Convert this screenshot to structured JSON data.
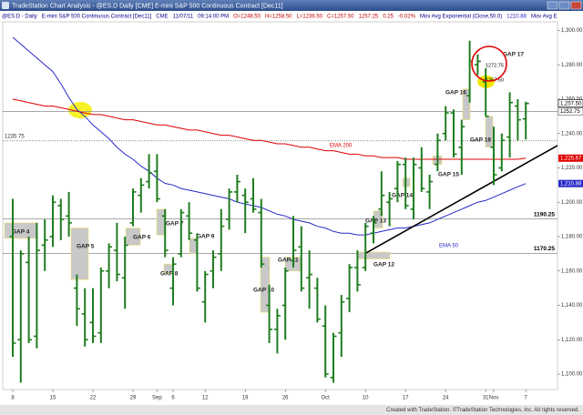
{
  "chart_data": {
    "type": "ohlc",
    "window_title": "TradeStation Chart Analysis - @ES.D Daily [CME] E-mini S&P 500 Continuous Contract [Dec11]",
    "info_bar": [
      "@ES.D - Daily",
      "E-mini S&P 500 Continuous Contract [Dec11]",
      "CME",
      "11/07/11",
      "09:14:00 PM",
      "O=1248.50",
      "H=1258.50",
      "L=1236.50",
      "C=1257.50",
      "1257.25",
      "0.25",
      "-0.02%",
      "Mov Avg Exponential (Close,50.0)",
      "1210.88",
      "Mov Avg E"
    ],
    "footer": "Created with TradeStation. ©TradeStation Technologies, Inc. All rights reserved.",
    "categories": [
      "8",
      null,
      null,
      null,
      null,
      "15",
      null,
      null,
      null,
      null,
      "22",
      null,
      null,
      null,
      null,
      "29",
      null,
      null,
      "Sep",
      null,
      "6",
      null,
      null,
      null,
      "12",
      null,
      null,
      null,
      null,
      "19",
      null,
      null,
      null,
      null,
      "26",
      null,
      null,
      null,
      null,
      "Oct",
      null,
      null,
      null,
      null,
      "10",
      null,
      null,
      null,
      null,
      "17",
      null,
      null,
      null,
      null,
      "24",
      null,
      null,
      null,
      null,
      "31",
      "Nov",
      null,
      null,
      null,
      "7"
    ],
    "open": [
      1180,
      1120,
      1165,
      1122,
      1175,
      1180,
      1198,
      1192,
      1150,
      1135,
      1130,
      1124,
      1160,
      1172,
      1156,
      1188,
      1204,
      1212,
      1218,
      1192,
      1150,
      1170,
      1192,
      1178,
      1142,
      1160,
      1170,
      1190,
      1206,
      1204,
      1202,
      1194,
      1140,
      1126,
      1140,
      1166,
      1174,
      1156,
      1150,
      1128,
      1098,
      1124,
      1144,
      1162,
      1162,
      1182,
      1196,
      1200,
      1208,
      1222,
      1196,
      1220,
      1206,
      1222,
      1240,
      1252,
      1232,
      1262,
      1280,
      1270,
      1232,
      1220,
      1238,
      1256,
      1248.5
    ],
    "high": [
      1202,
      1172,
      1180,
      1188,
      1190,
      1204,
      1202,
      1206,
      1158,
      1150,
      1150,
      1162,
      1176,
      1188,
      1180,
      1208,
      1214,
      1228,
      1228,
      1196,
      1168,
      1196,
      1200,
      1182,
      1160,
      1172,
      1196,
      1208,
      1216,
      1208,
      1214,
      1202,
      1152,
      1138,
      1162,
      1192,
      1186,
      1172,
      1156,
      1140,
      1124,
      1146,
      1164,
      1172,
      1188,
      1192,
      1218,
      1206,
      1224,
      1226,
      1226,
      1232,
      1216,
      1240,
      1256,
      1254,
      1248,
      1294,
      1286,
      1278,
      1244,
      1240,
      1264,
      1260,
      1258.5
    ],
    "low": [
      1110,
      1095,
      1118,
      1115,
      1160,
      1174,
      1178,
      1180,
      1128,
      1116,
      1118,
      1118,
      1150,
      1154,
      1138,
      1186,
      1194,
      1208,
      1200,
      1168,
      1140,
      1168,
      1178,
      1148,
      1130,
      1150,
      1160,
      1184,
      1200,
      1182,
      1194,
      1162,
      1118,
      1112,
      1120,
      1162,
      1148,
      1138,
      1130,
      1098,
      1095,
      1110,
      1136,
      1148,
      1160,
      1176,
      1192,
      1186,
      1200,
      1196,
      1190,
      1206,
      1196,
      1218,
      1236,
      1226,
      1216,
      1258,
      1274,
      1250,
      1210,
      1218,
      1226,
      1236,
      1236.5
    ],
    "close": [
      1118,
      1170,
      1120,
      1172,
      1178,
      1200,
      1190,
      1188,
      1138,
      1120,
      1122,
      1160,
      1174,
      1158,
      1175,
      1206,
      1210,
      1217,
      1202,
      1172,
      1164,
      1194,
      1182,
      1150,
      1158,
      1168,
      1186,
      1206,
      1212,
      1200,
      1196,
      1164,
      1126,
      1134,
      1160,
      1172,
      1150,
      1158,
      1132,
      1100,
      1122,
      1142,
      1162,
      1152,
      1186,
      1188,
      1204,
      1202,
      1222,
      1198,
      1222,
      1208,
      1212,
      1236,
      1252,
      1228,
      1244,
      1282,
      1282,
      1250,
      1216,
      1236,
      1258,
      1248,
      1257.5
    ],
    "bar_color": "#1e7d1e",
    "indicators": [
      {
        "name": "EMA 200",
        "color": "#e00000",
        "last_label": {
          "value": 1225.67,
          "label": "1,225.67"
        },
        "values": [
          1260,
          1259,
          1258,
          1257,
          1256,
          1256,
          1255,
          1254,
          1253,
          1252,
          1251,
          1251,
          1250,
          1249,
          1248,
          1248,
          1247,
          1246,
          1245,
          1245,
          1244,
          1243,
          1242,
          1242,
          1241,
          1240,
          1239,
          1239,
          1238,
          1237,
          1236,
          1236,
          1235,
          1234,
          1234,
          1233,
          1232,
          1232,
          1231,
          1230,
          1230,
          1229,
          1228,
          1228,
          1227,
          1227,
          1226,
          1226,
          1226,
          1225,
          1225,
          1225,
          1225,
          1225,
          1225,
          1225,
          1225,
          1225,
          1225,
          1225,
          1225,
          1225,
          1225,
          1225,
          1225.67
        ]
      },
      {
        "name": "EMA 50",
        "color": "#2828c8",
        "last_label": {
          "value": 1210.88,
          "label": "1,210.88"
        },
        "values": [
          1296,
          1292,
          1288,
          1284,
          1280,
          1276,
          1269,
          1261,
          1254,
          1250,
          1245,
          1241,
          1237,
          1232,
          1228,
          1225,
          1221,
          1218,
          1214,
          1211,
          1210,
          1208,
          1207,
          1206,
          1205,
          1204,
          1203,
          1202,
          1200,
          1199,
          1198,
          1197,
          1195,
          1193,
          1192,
          1190,
          1189,
          1188,
          1186,
          1185,
          1183,
          1182,
          1182,
          1181,
          1181,
          1182,
          1183,
          1184,
          1185,
          1185,
          1186,
          1187,
          1188,
          1190,
          1192,
          1194,
          1196,
          1198,
          1200,
          1201,
          1203,
          1205,
          1207,
          1209,
          1210.88
        ]
      }
    ],
    "last_price": {
      "value": 1257.5,
      "label": "1,257.50"
    },
    "levels": [
      {
        "value": 1252.75,
        "style": "solid",
        "tag": true
      },
      {
        "value": 1235.75,
        "style": "dotted",
        "tag": false
      },
      {
        "value": 1190.25,
        "style": "solid",
        "tag": false
      },
      {
        "value": 1170.25,
        "style": "solid",
        "tag": false
      }
    ],
    "gaps": [
      {
        "label": "GAP 4",
        "low": 1179,
        "high": 1188,
        "color": "#c8c8c8"
      },
      {
        "label": "GAP 5",
        "low": 1155,
        "high": 1185,
        "color": "#c8c8c8"
      },
      {
        "label": "GAP 6",
        "low": 1175,
        "high": 1185,
        "color": "#c8c8c8"
      },
      {
        "label": "GAP 7",
        "low": 1181,
        "high": 1196,
        "color": "#c8c8c8"
      },
      {
        "label": "GAP 8",
        "low": 1159,
        "high": 1164,
        "color": "#c8c8c8"
      },
      {
        "label": "GAP 9",
        "low": 1170,
        "high": 1179,
        "color": "#c8c8c8"
      },
      {
        "label": "GAP 10",
        "low": 1136,
        "high": 1168,
        "color": "#c8c8c8"
      },
      {
        "label": "GAP 11",
        "low": 1160,
        "high": 1168,
        "color": "#c8c8c8"
      },
      {
        "label": "GAP 12",
        "low": 1167,
        "high": 1171,
        "color": "#c8c8c8"
      },
      {
        "label": "GAP 13",
        "low": 1185,
        "high": 1195,
        "color": "#c8c8c8"
      },
      {
        "label": "GAP 14",
        "low": 1209,
        "high": 1214,
        "color": "#c8c8c8"
      },
      {
        "label": "GAP 15",
        "low": 1222,
        "high": 1227,
        "color": "#c8c8c8"
      },
      {
        "label": "GAP 16",
        "low": 1248,
        "high": 1266,
        "color": "#c8c8c8"
      },
      {
        "label": "GAP 17",
        "low": 1267.5,
        "high": 1272.75,
        "color": "#f2e600",
        "price_labels": {
          "high": "1272.75",
          "low": "1267.50"
        }
      },
      {
        "label": "GAP 18",
        "low": 1232,
        "high": 1250,
        "color": "#c8c8c8"
      }
    ],
    "trendline": {
      "start": 1170.25,
      "end": 1233,
      "color": "#000000"
    },
    "ylim": [
      1091,
      1305
    ],
    "yticks": [
      {
        "value": 1100,
        "label": "1,100.00"
      },
      {
        "value": 1120,
        "label": "1,120.00"
      },
      {
        "value": 1140,
        "label": "1,140.00"
      },
      {
        "value": 1160,
        "label": "1,160.00"
      },
      {
        "value": 1180,
        "label": "1,180.00"
      },
      {
        "value": 1200,
        "label": "1,200.00"
      },
      {
        "value": 1220,
        "label": "1,220.00"
      },
      {
        "value": 1240,
        "label": "1,240.00"
      },
      {
        "value": 1260,
        "label": "1,260.00"
      },
      {
        "value": 1280,
        "label": "1,280.00"
      },
      {
        "value": 1300,
        "label": "1,300.00"
      }
    ],
    "grid": false
  }
}
